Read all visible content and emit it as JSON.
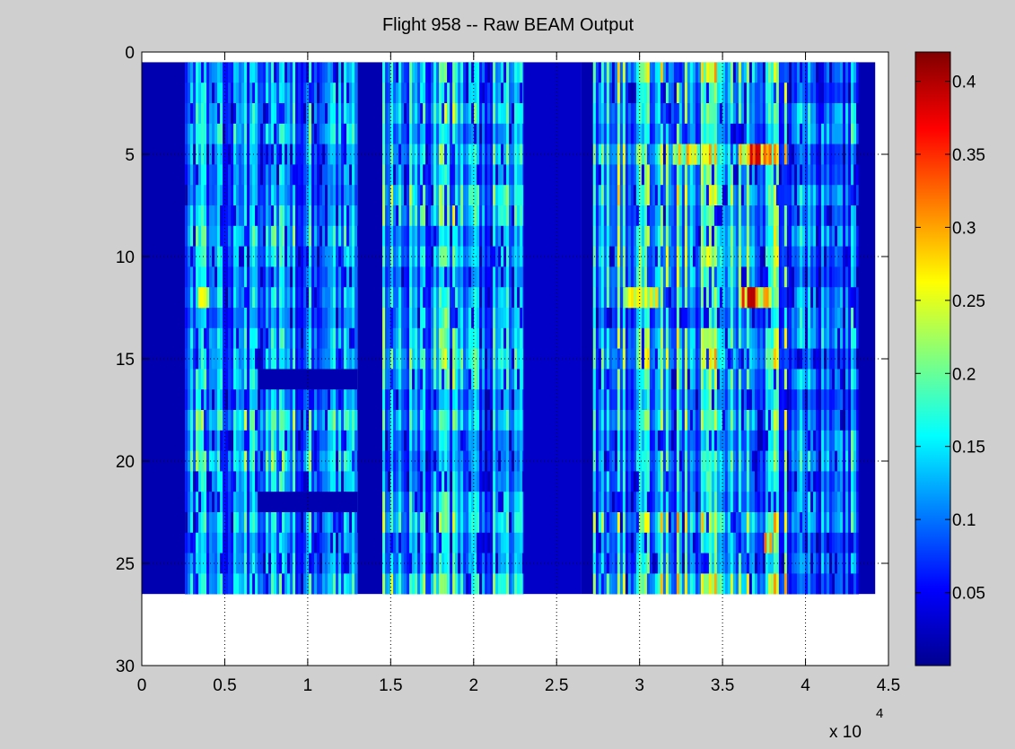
{
  "chart_data": {
    "type": "heatmap",
    "title": "Flight 958 -- Raw BEAM Output",
    "xlabel": "",
    "ylabel": "",
    "x_exponent_label": "x 10",
    "x_exponent_power": "4",
    "xlim": [
      0,
      45000
    ],
    "ylim": [
      0,
      30
    ],
    "y_reversed": true,
    "x_ticks": [
      0,
      5000,
      10000,
      15000,
      20000,
      25000,
      30000,
      35000,
      40000,
      45000
    ],
    "x_tick_labels": [
      "0",
      "0.5",
      "1",
      "1.5",
      "2",
      "2.5",
      "3",
      "3.5",
      "4",
      "4.5"
    ],
    "y_ticks": [
      0,
      5,
      10,
      15,
      20,
      25,
      30
    ],
    "y_tick_labels": [
      "0",
      "5",
      "10",
      "15",
      "20",
      "25",
      "30"
    ],
    "grid": true,
    "colormap": "jet",
    "clim": [
      0,
      0.42
    ],
    "colorbar_ticks": [
      0.05,
      0.1,
      0.15,
      0.2,
      0.25,
      0.3,
      0.35,
      0.4
    ],
    "colorbar_tick_labels": [
      "0.05",
      "0.1",
      "0.15",
      "0.2",
      "0.25",
      "0.3",
      "0.35",
      "0.4"
    ],
    "data_extent": {
      "x": [
        0,
        44200
      ],
      "rows": [
        1,
        26
      ]
    },
    "segments": [
      {
        "x": [
          0,
          2600
        ],
        "value": 0.02
      },
      {
        "x": [
          2600,
          13000
        ],
        "value": 0.13
      },
      {
        "x": [
          13000,
          14500
        ],
        "value": 0.02
      },
      {
        "x": [
          14500,
          23000
        ],
        "value": 0.14
      },
      {
        "x": [
          23000,
          26500
        ],
        "value": 0.03
      },
      {
        "x": [
          26500,
          27200
        ],
        "value": 0.02
      },
      {
        "x": [
          27200,
          39000
        ],
        "value": 0.16
      },
      {
        "x": [
          39000,
          43200
        ],
        "value": 0.11
      },
      {
        "x": [
          43200,
          44200
        ],
        "value": 0.02
      }
    ],
    "hotspots": [
      {
        "x": [
          36000,
          37900
        ],
        "rows": [
          5,
          5
        ],
        "value": 0.38
      },
      {
        "x": [
          36000,
          37900
        ],
        "rows": [
          12,
          12
        ],
        "value": 0.38
      },
      {
        "x": [
          3400,
          4000
        ],
        "rows": [
          12,
          12
        ],
        "value": 0.32
      },
      {
        "x": [
          32000,
          33500
        ],
        "rows": [
          5,
          5
        ],
        "value": 0.3
      },
      {
        "x": [
          29000,
          31000
        ],
        "rows": [
          12,
          12
        ],
        "value": 0.28
      },
      {
        "x": [
          37500,
          37900
        ],
        "rows": [
          24,
          24
        ],
        "value": 0.34
      }
    ],
    "low_bands": [
      {
        "x": [
          7000,
          13000
        ],
        "rows": [
          16,
          16
        ],
        "value": 0.02
      },
      {
        "x": [
          7000,
          13000
        ],
        "rows": [
          22,
          22
        ],
        "value": 0.02
      }
    ]
  }
}
